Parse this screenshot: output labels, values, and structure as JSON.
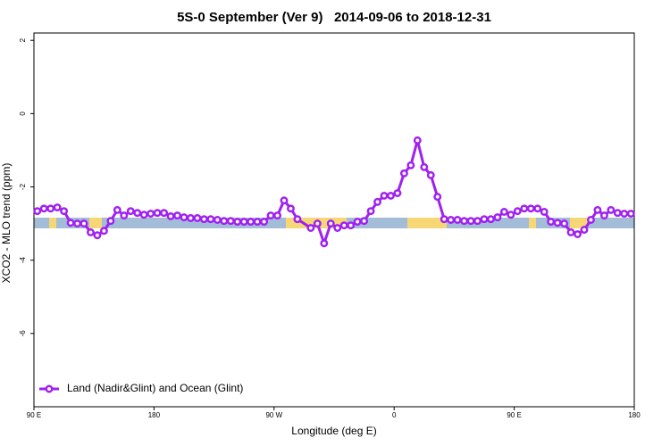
{
  "chart_data": {
    "type": "line",
    "title": "5S-0 September (Ver 9)   2014-09-06 to 2018-12-31",
    "x_label": "Longitude (deg E)",
    "y_label": "XCO2 - MLO trend (ppm)",
    "xlim": [
      90,
      540
    ],
    "xticks": [
      {
        "value": 90,
        "label": "90 E"
      },
      180,
      {
        "value": 270,
        "label": "90 W"
      },
      {
        "value": 360,
        "label": "0"
      },
      {
        "value": 450,
        "label": "90 E"
      },
      {
        "value": 540,
        "label": "180"
      }
    ],
    "ylim": [
      -8,
      2.2
    ],
    "yticks": [
      -6,
      -4,
      -2,
      0,
      2
    ],
    "legend": "bottom-left",
    "series": [
      {
        "name": "Land (Nadir&Glint) and Ocean (Glint)",
        "color": "#a020f0",
        "x": [
          92.5,
          97.5,
          102.5,
          107.5,
          112.5,
          117.5,
          122.5,
          127.5,
          132.5,
          137.5,
          142.5,
          147.5,
          152.5,
          157.5,
          162.5,
          167.5,
          172.5,
          177.5,
          182.5,
          187.5,
          192.5,
          197.5,
          202.5,
          207.5,
          212.5,
          217.5,
          222.5,
          227.5,
          232.5,
          237.5,
          242.5,
          247.5,
          252.5,
          257.5,
          262.5,
          267.5,
          272.5,
          277.5,
          282.5,
          287.5,
          297.5,
          302.5,
          307.5,
          312.5,
          317.5,
          322.5,
          327.5,
          332.5,
          337.5,
          342.5,
          347.5,
          352.5,
          357.5,
          362.5,
          367.5,
          372.5,
          377.5,
          382.5,
          387.5,
          392.5,
          397.5,
          402.5,
          407.5,
          412.5,
          417.5,
          422.5,
          427.5,
          432.5,
          437.5,
          442.5,
          447.5,
          452.5,
          457.5,
          462.5,
          467.5,
          472.5,
          477.5,
          482.5,
          487.5,
          492.5,
          497.5,
          502.5,
          507.5,
          512.5,
          517.5,
          522.5,
          527.5,
          532.5,
          537.5
        ],
        "values": [
          -2.66,
          -2.59,
          -2.59,
          -2.56,
          -2.66,
          -2.98,
          -3.0,
          -3.0,
          -3.24,
          -3.32,
          -3.2,
          -2.93,
          -2.63,
          -2.78,
          -2.66,
          -2.71,
          -2.76,
          -2.73,
          -2.71,
          -2.71,
          -2.8,
          -2.78,
          -2.83,
          -2.85,
          -2.85,
          -2.88,
          -2.88,
          -2.9,
          -2.93,
          -2.93,
          -2.95,
          -2.95,
          -2.95,
          -2.95,
          -2.95,
          -2.78,
          -2.78,
          -2.37,
          -2.59,
          -2.88,
          -3.12,
          -3.0,
          -3.54,
          -3.0,
          -3.12,
          -3.05,
          -3.05,
          -2.95,
          -2.93,
          -2.66,
          -2.41,
          -2.24,
          -2.24,
          -2.17,
          -1.63,
          -1.41,
          -0.73,
          -1.46,
          -1.68,
          -2.27,
          -2.88,
          -2.9,
          -2.9,
          -2.93,
          -2.93,
          -2.93,
          -2.88,
          -2.88,
          -2.83,
          -2.68,
          -2.76,
          -2.66,
          -2.59,
          -2.59,
          -2.59,
          -2.68,
          -2.95,
          -2.98,
          -3.0,
          -3.24,
          -3.29,
          -3.17,
          -2.9,
          -2.63,
          -2.78,
          -2.63,
          -2.71,
          -2.73,
          -2.73
        ]
      }
    ]
  }
}
